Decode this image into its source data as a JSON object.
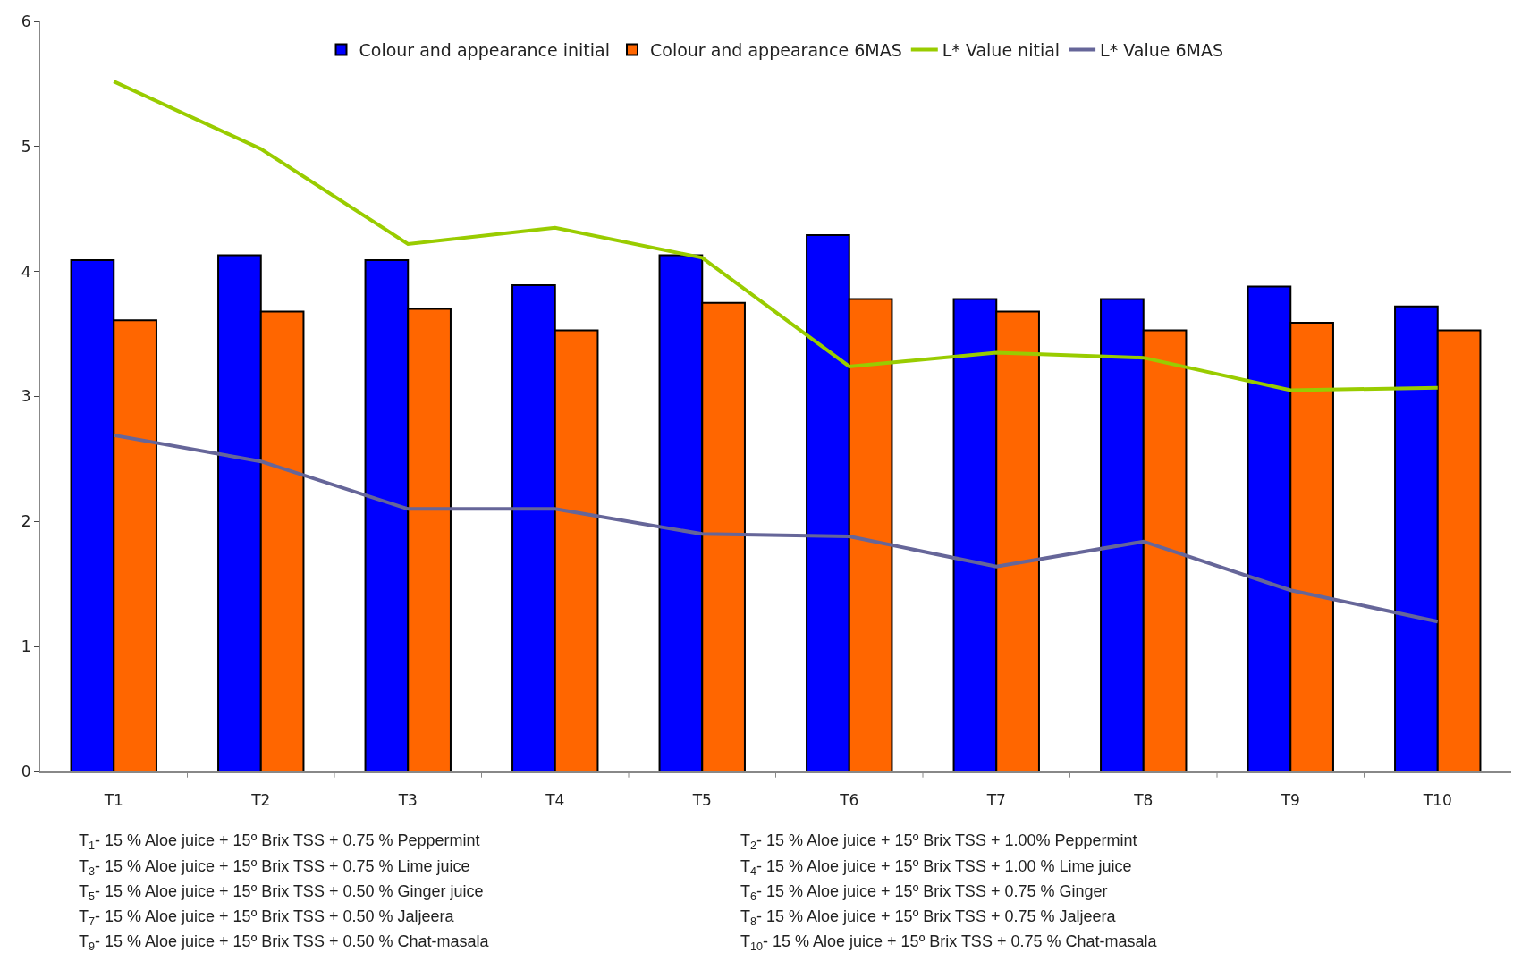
{
  "chart_data": {
    "type": "bar",
    "categories": [
      "T1",
      "T2",
      "T3",
      "T4",
      "T5",
      "T6",
      "T7",
      "T8",
      "T9",
      "T10"
    ],
    "series": [
      {
        "name": "Colour and appearance initial",
        "color": "#0000ff",
        "values": [
          4.09,
          4.13,
          4.09,
          3.89,
          4.13,
          4.29,
          3.78,
          3.78,
          3.88,
          3.72
        ]
      },
      {
        "name": "Colour and appearance 6MAS",
        "color": "#ff6600",
        "values": [
          3.61,
          3.68,
          3.7,
          3.53,
          3.75,
          3.78,
          3.68,
          3.53,
          3.59,
          3.53
        ]
      },
      {
        "name": "L* Value nitial",
        "type": "line",
        "color": "#99cc00",
        "values": [
          5.52,
          4.98,
          4.22,
          4.35,
          4.11,
          3.24,
          3.35,
          3.31,
          3.05,
          3.07
        ]
      },
      {
        "name": "L* Value 6MAS",
        "type": "line",
        "color": "#666699",
        "values": [
          2.69,
          2.48,
          2.1,
          2.1,
          1.9,
          1.88,
          1.64,
          1.84,
          1.45,
          1.2
        ]
      }
    ],
    "ylim": [
      0,
      6
    ],
    "yticks": [
      0,
      1,
      2,
      3,
      4,
      5,
      6
    ],
    "grid": false,
    "legend": "top",
    "marker": "none",
    "line_style": "solid",
    "annotations": [
      "T$_{1}$- 15 % Aloe juice + 15º Brix TSS + 0.75 % Peppermint",
      "T$_{2}$- 15 % Aloe juice + 15º Brix TSS + 1.00% Peppermint",
      "T$_{3}$- 15 % Aloe juice + 15º Brix TSS + 0.75 % Lime juice",
      "T$_{4}$- 15 % Aloe juice + 15º Brix TSS + 1.00 % Lime juice",
      "T$_{5}$- 15 % Aloe juice + 15º Brix TSS + 0.50 % Ginger juice",
      "T$_{6}$- 15 % Aloe juice + 15º Brix TSS + 0.75 % Ginger",
      "T$_{7}$- 15 % Aloe juice + 15º Brix TSS + 0.50 % Jaljeera",
      "T$_{8}$- 15 % Aloe juice + 15º Brix TSS + 0.75 % Jaljeera",
      "T$_{9}$- 15 % Aloe juice + 15º Brix TSS + 0.50 % Chat-masala",
      "T$_{10}$- 15 % Aloe juice + 15º Brix TSS + 0.75 % Chat-masala"
    ]
  }
}
